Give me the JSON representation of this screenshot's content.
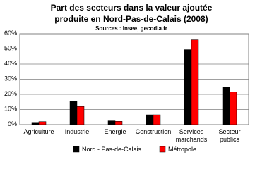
{
  "chart_data": {
    "type": "bar",
    "title": "Part des secteurs dans la valeur ajoutée\nproduite en Nord-Pas-de-Calais (2008)",
    "subtitle": "Sources : Insee, gecodia.fr",
    "categories": [
      "Agriculture",
      "Industrie",
      "Energie",
      "Construction",
      "Services\nmarchands",
      "Secteur\npublics"
    ],
    "series": [
      {
        "name": "Nord - Pas-de-Calais",
        "color": "#000000",
        "values": [
          1.5,
          15.5,
          2.5,
          6.5,
          49.5,
          25
        ]
      },
      {
        "name": "Métropole",
        "color": "#ff0000",
        "values": [
          2,
          12,
          2.2,
          6.5,
          56,
          21.5
        ]
      }
    ],
    "ylim": [
      0,
      60
    ],
    "yticks": [
      {
        "value": 0,
        "label": "0%"
      },
      {
        "value": 10,
        "label": "10%"
      },
      {
        "value": 20,
        "label": "20%"
      },
      {
        "value": 30,
        "label": "30%"
      },
      {
        "value": 40,
        "label": "40%"
      },
      {
        "value": 50,
        "label": "50%"
      },
      {
        "value": 60,
        "label": "60%"
      }
    ],
    "grid": true,
    "legend": "bottom"
  }
}
